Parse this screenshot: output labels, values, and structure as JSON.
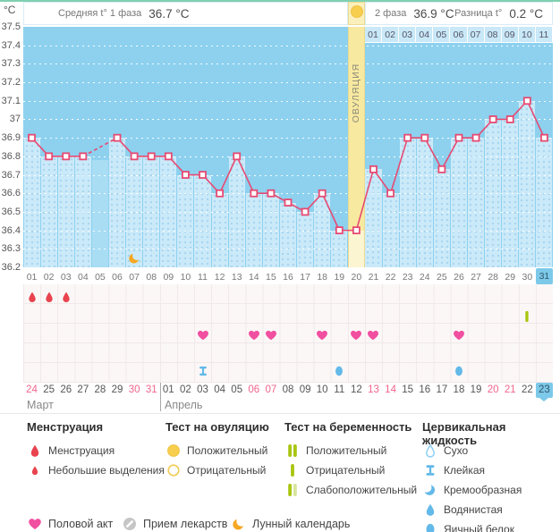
{
  "header": {
    "phase1_label": "Средняя t° 1 фаза",
    "phase1_value": "36.7 °C",
    "phase2_label": "2 фаза",
    "phase2_value": "36.9 °C",
    "diff_label": "Разница t°",
    "diff_value": "0.2 °C"
  },
  "chart_data": {
    "type": "line",
    "unit": "°C",
    "ylim": [
      36.2,
      37.5
    ],
    "grid": "dotted-white-horizontal",
    "y_ticks": [
      "37.5",
      "37.4",
      "37.3",
      "37.2",
      "37.1",
      "37",
      "36.9",
      "36.8",
      "36.7",
      "36.6",
      "36.5",
      "36.4",
      "36.3",
      "36.2"
    ],
    "days": [
      "01",
      "02",
      "03",
      "04",
      "05",
      "06",
      "07",
      "08",
      "09",
      "10",
      "11",
      "12",
      "13",
      "14",
      "15",
      "16",
      "17",
      "18",
      "19",
      "20",
      "21",
      "22",
      "23",
      "24",
      "25",
      "26",
      "27",
      "28",
      "29",
      "30",
      "31"
    ],
    "temps": [
      36.9,
      36.8,
      36.8,
      36.8,
      null,
      36.9,
      36.8,
      36.8,
      36.8,
      36.7,
      36.7,
      36.6,
      36.8,
      36.6,
      36.6,
      36.55,
      36.5,
      36.6,
      36.4,
      36.4,
      36.73,
      36.6,
      36.9,
      36.9,
      36.73,
      36.9,
      36.9,
      37.0,
      37.0,
      37.1,
      36.9
    ],
    "missing_days": [
      5
    ],
    "ovulation_day": 20,
    "ovulation_label": "ОВУЛЯЦИЯ",
    "phase2_day_labels": {
      "start_day": 21,
      "labels": [
        "01",
        "02",
        "03",
        "04",
        "05",
        "06",
        "07",
        "08",
        "09",
        "10",
        "11"
      ]
    }
  },
  "events": {
    "menstruation_days": [
      1,
      2,
      3
    ],
    "lunar_days": [
      7
    ],
    "intercourse_days": [
      11,
      14,
      15,
      18,
      20,
      21,
      26
    ],
    "pregnancy_tests": [
      {
        "day": 30,
        "result": "negative"
      }
    ],
    "cervical_fluid": [
      {
        "day": 11,
        "type": "sticky"
      },
      {
        "day": 19,
        "type": "egg-white"
      },
      {
        "day": 26,
        "type": "egg-white"
      }
    ]
  },
  "calendar": {
    "dates": [
      "24",
      "25",
      "26",
      "27",
      "28",
      "29",
      "30",
      "31",
      "01",
      "02",
      "03",
      "04",
      "05",
      "06",
      "07",
      "08",
      "09",
      "10",
      "11",
      "12",
      "13",
      "14",
      "15",
      "16",
      "17",
      "18",
      "19",
      "20",
      "21",
      "22",
      "23"
    ],
    "weekend_positions": [
      1,
      7,
      8,
      14,
      15,
      21,
      22,
      28,
      29
    ],
    "today_position": 31,
    "today_cycle_day": "31",
    "today_date": "23",
    "months": [
      {
        "label": "Март"
      },
      {
        "label": "Апрель"
      }
    ]
  },
  "legend": {
    "sections": [
      {
        "title": "Менструация",
        "items": [
          {
            "icon": "drop",
            "label": "Менструация"
          },
          {
            "icon": "drop-small",
            "label": "Небольшие выделения"
          }
        ]
      },
      {
        "title": "Тест на овуляцию",
        "items": [
          {
            "icon": "circle-filled",
            "label": "Положительный"
          },
          {
            "icon": "circle-outline",
            "label": "Отрицательный"
          }
        ]
      },
      {
        "title": "Тест на беременность",
        "items": [
          {
            "icon": "bars-positive",
            "label": "Положительный"
          },
          {
            "icon": "bar-negative",
            "label": "Отрицательный"
          },
          {
            "icon": "bars-weak",
            "label": "Слабоположительный"
          }
        ]
      },
      {
        "title": "Цервикальная жидкость",
        "items": [
          {
            "icon": "drop-outline",
            "label": "Сухо"
          },
          {
            "icon": "sticky",
            "label": "Клейкая"
          },
          {
            "icon": "creamy",
            "label": "Кремообразная"
          },
          {
            "icon": "drop-blue",
            "label": "Водянистая"
          },
          {
            "icon": "egg",
            "label": "Яичный белок"
          }
        ]
      }
    ],
    "footer_items": [
      {
        "icon": "heart",
        "label": "Половой акт"
      },
      {
        "icon": "medication",
        "label": "Прием лекарств"
      },
      {
        "icon": "moon",
        "label": "Лунный календарь"
      }
    ]
  },
  "colors": {
    "top_border": "#7FD0B0",
    "chart_bg": "#8DD1EF",
    "bar": "#CBEAF9",
    "bar_missing": "#A9DDF4",
    "ovulation_bg": "#F8E9A1",
    "ovulation_bar": "#FCF5D2",
    "ovulation_header_bg": "#FBF0BC",
    "phase2_cell_bg": "#C9E8F8",
    "line": "#E64A72",
    "menstruation": "#E8434E",
    "intercourse": "#F14FA0",
    "ovulation_test": "#F7CE4D",
    "pregnancy_test": "#A9C50F",
    "pregnancy_test_weak": "#D6E59A",
    "cervical": "#63B9E8",
    "cervical_light": "#8ECFF5",
    "lunar": "#F6A723",
    "medication": "#C6C6C6",
    "weekend": "#F2648C",
    "today_bg": "#7CC9E9",
    "icon_area_bg": "#FBF7F7"
  }
}
